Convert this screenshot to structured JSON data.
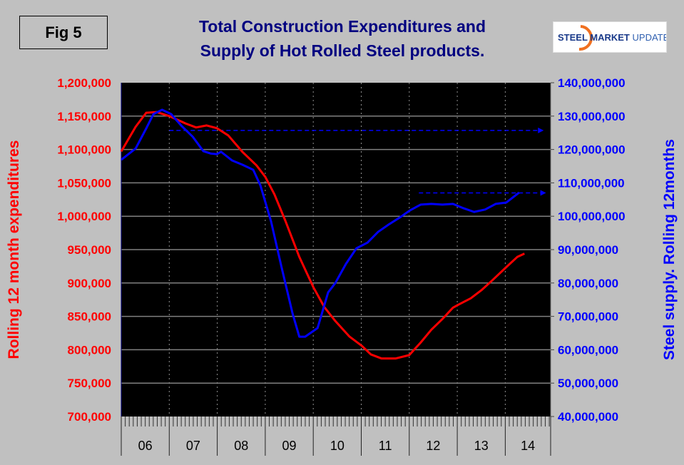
{
  "figure_label": "Fig 5",
  "logo": {
    "text_bold": "STEEL MARKET",
    "text_light": "UPDATE"
  },
  "chart_data": {
    "type": "line",
    "title": [
      "Total Construction Expenditures and",
      "Supply of Hot Rolled Steel products."
    ],
    "xlabel": "",
    "x_tick_labels": [
      "06",
      "07",
      "08",
      "09",
      "10",
      "11",
      "12",
      "13",
      "14"
    ],
    "xlim": [
      2006.0,
      2014.9
    ],
    "y_left": {
      "label": "Rolling 12 month expenditures",
      "lim": [
        700000,
        1200000
      ],
      "tick_labels": [
        "700,000",
        "750,000",
        "800,000",
        "850,000",
        "900,000",
        "950,000",
        "1,000,000",
        "1,050,000",
        "1,100,000",
        "1,150,000",
        "1,200,000"
      ],
      "color": "#ff0000"
    },
    "y_right": {
      "label": "Steel supply. Rolling 12months",
      "lim": [
        40000000,
        140000000
      ],
      "tick_labels": [
        "40,000,000",
        "50,000,000",
        "60,000,000",
        "70,000,000",
        "80,000,000",
        "90,000,000",
        "100,000,000",
        "110,000,000",
        "120,000,000",
        "130,000,000",
        "140,000,000"
      ],
      "color": "#0000ff"
    },
    "grid": {
      "horizontal": true,
      "vertical_dotted_at_years": true
    },
    "plot_background": "#000000",
    "series": [
      {
        "axis": "left",
        "color": "#ff0000",
        "points": [
          [
            2006.0,
            1097000
          ],
          [
            2006.3,
            1134000
          ],
          [
            2006.52,
            1155000
          ],
          [
            2006.74,
            1156000
          ],
          [
            2007.0,
            1150000
          ],
          [
            2007.34,
            1139000
          ],
          [
            2007.56,
            1133000
          ],
          [
            2007.78,
            1136000
          ],
          [
            2007.99,
            1132000
          ],
          [
            2008.23,
            1121000
          ],
          [
            2008.53,
            1096000
          ],
          [
            2008.82,
            1076000
          ],
          [
            2009.0,
            1059000
          ],
          [
            2009.19,
            1033000
          ],
          [
            2009.42,
            993000
          ],
          [
            2009.71,
            939000
          ],
          [
            2010.0,
            894000
          ],
          [
            2010.23,
            864000
          ],
          [
            2010.46,
            843000
          ],
          [
            2010.75,
            820000
          ],
          [
            2011.01,
            806000
          ],
          [
            2011.2,
            793000
          ],
          [
            2011.42,
            787000
          ],
          [
            2011.72,
            787000
          ],
          [
            2012.0,
            792000
          ],
          [
            2012.24,
            811000
          ],
          [
            2012.46,
            830000
          ],
          [
            2012.69,
            846000
          ],
          [
            2012.91,
            863000
          ],
          [
            2013.01,
            867000
          ],
          [
            2013.28,
            877000
          ],
          [
            2013.5,
            889000
          ],
          [
            2013.73,
            904000
          ],
          [
            2014.01,
            923000
          ],
          [
            2014.25,
            939000
          ],
          [
            2014.4,
            944000
          ]
        ]
      },
      {
        "axis": "right",
        "color": "#0000ff",
        "points": [
          [
            2006.0,
            116900000
          ],
          [
            2006.3,
            120300000
          ],
          [
            2006.52,
            126300000
          ],
          [
            2006.67,
            130600000
          ],
          [
            2006.85,
            131900000
          ],
          [
            2007.04,
            130600000
          ],
          [
            2007.26,
            127000000
          ],
          [
            2007.49,
            123800000
          ],
          [
            2007.71,
            119500000
          ],
          [
            2007.86,
            118800000
          ],
          [
            2007.99,
            118600000
          ],
          [
            2008.08,
            119300000
          ],
          [
            2008.31,
            116700000
          ],
          [
            2008.53,
            115400000
          ],
          [
            2008.75,
            113900000
          ],
          [
            2008.9,
            109200000
          ],
          [
            2009.12,
            98500000
          ],
          [
            2009.34,
            84700000
          ],
          [
            2009.57,
            70800000
          ],
          [
            2009.71,
            63900000
          ],
          [
            2009.83,
            63900000
          ],
          [
            2010.09,
            66500000
          ],
          [
            2010.31,
            77200000
          ],
          [
            2010.46,
            80000000
          ],
          [
            2010.68,
            85700000
          ],
          [
            2010.9,
            90400000
          ],
          [
            2011.13,
            92100000
          ],
          [
            2011.35,
            95300000
          ],
          [
            2011.57,
            97500000
          ],
          [
            2011.8,
            99600000
          ],
          [
            2012.02,
            101800000
          ],
          [
            2012.24,
            103500000
          ],
          [
            2012.46,
            103700000
          ],
          [
            2012.69,
            103500000
          ],
          [
            2012.91,
            103700000
          ],
          [
            2013.13,
            102400000
          ],
          [
            2013.35,
            101300000
          ],
          [
            2013.58,
            102000000
          ],
          [
            2013.8,
            103700000
          ],
          [
            2014.02,
            104100000
          ],
          [
            2014.29,
            107100000
          ]
        ]
      }
    ],
    "annotations": [
      {
        "type": "dashed-arrow",
        "axis": "right",
        "value": 125700000,
        "from": 2007.0,
        "to": 2014.8,
        "color": "#0000ff"
      },
      {
        "type": "dashed-arrow",
        "axis": "right",
        "value": 107000000,
        "from": 2012.2,
        "to": 2014.85,
        "color": "#0000ff"
      }
    ]
  }
}
